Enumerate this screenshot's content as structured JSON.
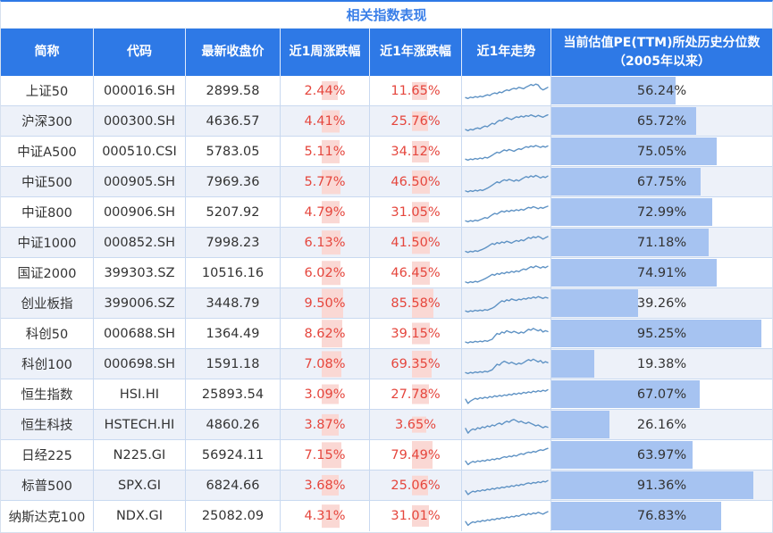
{
  "title": "相关指数表现",
  "pe_header": {
    "line1": "当前估值PE(TTM)所处历史分位数",
    "line2": "（2005年以来）"
  },
  "colors": {
    "header_bg": "#2e79e6",
    "title_color": "#3a7fe8",
    "change_red": "#e5463d",
    "heat_pink": "#fad8d4",
    "pe_bar_blue": "#a6c3f1",
    "alt_row": "#edf1f9",
    "grid_border": "#c9d9f0",
    "sparkline": "#5e92c4"
  },
  "chart_data": {
    "type": "table",
    "title": "相关指数表现",
    "columns": [
      "简称",
      "代码",
      "最新收盘价",
      "近1周涨跌幅",
      "近1年涨跌幅",
      "近1年走势",
      "当前估值PE(TTM)所处历史分位数（2005年以来）"
    ],
    "scale_hints": {
      "week_change_max": 9.5,
      "year_change_max": 85.58,
      "pe_percentile_max": 100
    },
    "rows": [
      {
        "name": "上证50",
        "code": "000016.SH",
        "close": "2899.58",
        "week": "2.44%",
        "week_val": 2.44,
        "year": "11.65%",
        "year_val": 11.65,
        "pe": "56.24%",
        "pe_val": 56.24,
        "trend": [
          22,
          18,
          24,
          21,
          26,
          23,
          28,
          25,
          30,
          34,
          31,
          38,
          42,
          39,
          46,
          43,
          50,
          55,
          52,
          58,
          62,
          59,
          66,
          63,
          60,
          67,
          72,
          78,
          74,
          80,
          76,
          62,
          55,
          60,
          66
        ]
      },
      {
        "name": "沪深300",
        "code": "000300.SH",
        "close": "4636.57",
        "week": "4.41%",
        "week_val": 4.41,
        "year": "25.76%",
        "year_val": 25.76,
        "pe": "65.72%",
        "pe_val": 65.72,
        "trend": [
          15,
          10,
          16,
          13,
          19,
          22,
          18,
          25,
          30,
          27,
          35,
          42,
          38,
          48,
          55,
          52,
          60,
          66,
          62,
          58,
          64,
          70,
          67,
          73,
          69,
          75,
          72,
          78,
          74,
          70,
          76,
          72,
          68,
          74,
          78
        ]
      },
      {
        "name": "中证A500",
        "code": "000510.CSI",
        "close": "5783.05",
        "week": "5.11%",
        "week_val": 5.11,
        "year": "34.12%",
        "year_val": 34.12,
        "pe": "75.05%",
        "pe_val": 75.05,
        "trend": [
          18,
          14,
          19,
          16,
          21,
          18,
          23,
          20,
          26,
          23,
          29,
          35,
          42,
          48,
          45,
          52,
          58,
          54,
          60,
          56,
          52,
          58,
          63,
          60,
          66,
          72,
          69,
          75,
          71,
          77,
          73,
          69,
          74,
          70,
          75
        ]
      },
      {
        "name": "中证500",
        "code": "000905.SH",
        "close": "7969.36",
        "week": "5.77%",
        "week_val": 5.77,
        "year": "46.50%",
        "year_val": 46.5,
        "pe": "67.75%",
        "pe_val": 67.75,
        "trend": [
          12,
          8,
          13,
          10,
          15,
          12,
          17,
          14,
          19,
          24,
          30,
          37,
          44,
          51,
          47,
          55,
          60,
          56,
          62,
          58,
          54,
          60,
          55,
          62,
          68,
          74,
          70,
          77,
          72,
          79,
          74,
          68,
          74,
          70,
          76
        ]
      },
      {
        "name": "中证800",
        "code": "000906.SH",
        "close": "5207.92",
        "week": "4.79%",
        "week_val": 4.79,
        "year": "31.05%",
        "year_val": 31.05,
        "pe": "72.99%",
        "pe_val": 72.99,
        "trend": [
          14,
          10,
          15,
          12,
          17,
          14,
          19,
          23,
          28,
          25,
          33,
          40,
          46,
          43,
          50,
          56,
          52,
          58,
          54,
          60,
          56,
          62,
          58,
          64,
          60,
          66,
          72,
          69,
          75,
          71,
          66,
          72,
          68,
          73,
          77
        ]
      },
      {
        "name": "中证1000",
        "code": "000852.SH",
        "close": "7998.23",
        "week": "6.13%",
        "week_val": 6.13,
        "year": "41.50%",
        "year_val": 41.5,
        "pe": "71.18%",
        "pe_val": 71.18,
        "trend": [
          13,
          9,
          14,
          11,
          16,
          13,
          18,
          22,
          27,
          33,
          40,
          47,
          43,
          51,
          47,
          54,
          50,
          57,
          53,
          49,
          55,
          60,
          56,
          63,
          59,
          66,
          73,
          69,
          76,
          72,
          78,
          73,
          66,
          72,
          77
        ]
      },
      {
        "name": "国证2000",
        "code": "399303.SZ",
        "close": "10516.16",
        "week": "6.02%",
        "week_val": 6.02,
        "year": "46.45%",
        "year_val": 46.45,
        "pe": "74.91%",
        "pe_val": 74.91,
        "trend": [
          12,
          8,
          13,
          10,
          15,
          12,
          17,
          21,
          26,
          32,
          38,
          45,
          41,
          49,
          45,
          52,
          48,
          55,
          51,
          58,
          54,
          60,
          56,
          63,
          68,
          65,
          72,
          78,
          74,
          81,
          77,
          72,
          78,
          74,
          80
        ]
      },
      {
        "name": "创业板指",
        "code": "399006.SZ",
        "close": "3448.79",
        "week": "9.50%",
        "week_val": 9.5,
        "year": "85.58%",
        "year_val": 85.58,
        "pe": "39.26%",
        "pe_val": 39.26,
        "trend": [
          18,
          14,
          19,
          16,
          21,
          18,
          22,
          19,
          24,
          21,
          26,
          30,
          36,
          45,
          54,
          62,
          58,
          66,
          62,
          70,
          66,
          63,
          69,
          66,
          72,
          69,
          75,
          72,
          78,
          74,
          80,
          76,
          72,
          77,
          74
        ]
      },
      {
        "name": "科创50",
        "code": "000688.SH",
        "close": "1364.49",
        "week": "8.62%",
        "week_val": 8.62,
        "year": "39.15%",
        "year_val": 39.15,
        "pe": "95.25%",
        "pe_val": 95.25,
        "trend": [
          15,
          11,
          16,
          13,
          18,
          15,
          19,
          16,
          21,
          18,
          23,
          27,
          40,
          52,
          48,
          58,
          54,
          64,
          59,
          55,
          61,
          57,
          52,
          58,
          54,
          62,
          70,
          66,
          74,
          68,
          63,
          69,
          58,
          64,
          60
        ]
      },
      {
        "name": "科创100",
        "code": "000698.SH",
        "close": "1591.18",
        "week": "7.08%",
        "week_val": 7.08,
        "year": "69.35%",
        "year_val": 69.35,
        "pe": "19.38%",
        "pe_val": 19.38,
        "trend": [
          14,
          10,
          15,
          12,
          17,
          14,
          18,
          15,
          20,
          17,
          22,
          26,
          38,
          50,
          46,
          57,
          63,
          58,
          53,
          59,
          54,
          49,
          55,
          51,
          57,
          64,
          70,
          65,
          72,
          66,
          60,
          66,
          55,
          61,
          57
        ]
      },
      {
        "name": "恒生指数",
        "code": "HSI.HI",
        "close": "25893.54",
        "week": "3.09%",
        "week_val": 3.09,
        "year": "27.78%",
        "year_val": 27.78,
        "pe": "67.07%",
        "pe_val": 67.07,
        "trend": [
          30,
          12,
          22,
          28,
          34,
          30,
          37,
          33,
          39,
          35,
          42,
          38,
          45,
          41,
          47,
          43,
          49,
          46,
          52,
          48,
          55,
          51,
          57,
          53,
          60,
          56,
          62,
          58,
          65,
          61,
          67,
          63,
          69,
          65,
          71
        ]
      },
      {
        "name": "恒生科技",
        "code": "HSTECH.HI",
        "close": "4860.26",
        "week": "3.87%",
        "week_val": 3.87,
        "year": "3.65%",
        "year_val": 3.65,
        "pe": "26.16%",
        "pe_val": 26.16,
        "trend": [
          35,
          15,
          26,
          33,
          29,
          38,
          34,
          42,
          38,
          46,
          42,
          50,
          46,
          54,
          58,
          52,
          60,
          66,
          62,
          70,
          74,
          68,
          62,
          66,
          60,
          56,
          62,
          57,
          52,
          46,
          50,
          44,
          38,
          44,
          40
        ]
      },
      {
        "name": "日经225",
        "code": "N225.GI",
        "close": "56924.11",
        "week": "7.15%",
        "week_val": 7.15,
        "year": "79.49%",
        "year_val": 79.49,
        "pe": "63.97%",
        "pe_val": 63.97,
        "trend": [
          25,
          10,
          18,
          24,
          20,
          26,
          23,
          28,
          25,
          31,
          28,
          34,
          31,
          37,
          34,
          40,
          44,
          41,
          47,
          44,
          50,
          47,
          53,
          57,
          54,
          60,
          64,
          61,
          67,
          64,
          70,
          74,
          71,
          76,
          80
        ]
      },
      {
        "name": "标普500",
        "code": "SPX.GI",
        "close": "6824.66",
        "week": "3.68%",
        "week_val": 3.68,
        "year": "25.06%",
        "year_val": 25.06,
        "pe": "91.36%",
        "pe_val": 91.36,
        "trend": [
          28,
          12,
          20,
          26,
          23,
          29,
          26,
          32,
          29,
          35,
          32,
          38,
          35,
          41,
          38,
          44,
          41,
          47,
          44,
          50,
          47,
          53,
          50,
          56,
          53,
          59,
          62,
          58,
          64,
          61,
          67,
          63,
          69,
          66,
          72
        ]
      },
      {
        "name": "纳斯达克100",
        "code": "NDX.GI",
        "close": "25082.09",
        "week": "4.31%",
        "week_val": 4.31,
        "year": "31.01%",
        "year_val": 31.01,
        "pe": "76.83%",
        "pe_val": 76.83,
        "trend": [
          26,
          10,
          19,
          25,
          22,
          28,
          25,
          31,
          28,
          34,
          31,
          37,
          34,
          40,
          37,
          43,
          40,
          46,
          43,
          49,
          46,
          52,
          49,
          55,
          58,
          54,
          61,
          57,
          63,
          60,
          66,
          62,
          58,
          64,
          69
        ]
      }
    ]
  }
}
